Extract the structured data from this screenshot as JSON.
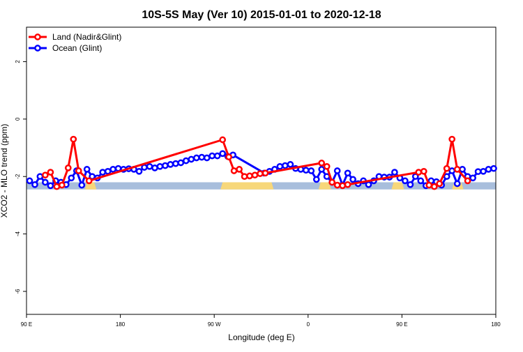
{
  "chart_data": {
    "type": "line",
    "title": "10S-5S May (Ver 10)   2015-01-01 to 2020-12-18",
    "xlabel": "Longitude (deg E)",
    "ylabel": "XCO2 - MLO trend (ppm)",
    "xlim": [
      90,
      540
    ],
    "ylim": [
      -6.8,
      3.2
    ],
    "x_ticks": [
      {
        "value": 90,
        "label": "90 E"
      },
      {
        "value": 180,
        "label": "180"
      },
      {
        "value": 270,
        "label": "90 W"
      },
      {
        "value": 360,
        "label": "0"
      },
      {
        "value": 450,
        "label": "90 E"
      },
      {
        "value": 540,
        "label": "180"
      }
    ],
    "y_ticks": [
      {
        "value": 2,
        "label": "2"
      },
      {
        "value": 0,
        "label": "0"
      },
      {
        "value": -2,
        "label": "-2"
      },
      {
        "value": -4,
        "label": "-4"
      },
      {
        "value": -6,
        "label": "-6"
      }
    ],
    "legend": {
      "position": "top-left"
    },
    "band": {
      "y_top": -2.2,
      "y_bottom": -2.45,
      "ocean_color": "#a8bedc",
      "land_color": "#f7d77a",
      "land_ranges": [
        [
          148,
          155
        ],
        [
          278,
          325
        ],
        [
          372,
          380
        ],
        [
          442,
          450
        ],
        [
          500,
          507
        ]
      ]
    },
    "series": [
      {
        "name": "Land (Nadir&Glint)",
        "color": "#ff0000",
        "points": [
          [
            108,
            -1.95
          ],
          [
            113,
            -1.85
          ],
          [
            119,
            -2.35
          ],
          [
            124,
            -2.3
          ],
          [
            130,
            -1.7
          ],
          [
            135,
            -0.7
          ],
          [
            140,
            -1.8
          ],
          [
            150,
            -2.15
          ],
          [
            278,
            -0.72
          ],
          [
            284,
            -1.32
          ],
          [
            289,
            -1.8
          ],
          [
            294,
            -1.75
          ],
          [
            299,
            -2.0
          ],
          [
            304,
            -1.98
          ],
          [
            309,
            -1.95
          ],
          [
            314,
            -1.9
          ],
          [
            319,
            -1.88
          ],
          [
            373,
            -1.53
          ],
          [
            378,
            -1.65
          ],
          [
            383,
            -2.2
          ],
          [
            388,
            -2.3
          ],
          [
            393,
            -2.32
          ],
          [
            398,
            -2.28
          ],
          [
            466,
            -1.85
          ],
          [
            471,
            -1.82
          ],
          [
            476,
            -2.3
          ],
          [
            481,
            -2.35
          ],
          [
            486,
            -2.25
          ],
          [
            493,
            -1.72
          ],
          [
            498,
            -0.7
          ],
          [
            503,
            -1.75
          ],
          [
            513,
            -2.15
          ]
        ]
      },
      {
        "name": "Ocean (Glint)",
        "color": "#0000ff",
        "points": [
          [
            93,
            -2.15
          ],
          [
            98,
            -2.28
          ],
          [
            103,
            -2.0
          ],
          [
            108,
            -2.2
          ],
          [
            113,
            -2.32
          ],
          [
            118,
            -2.15
          ],
          [
            123,
            -2.2
          ],
          [
            128,
            -2.28
          ],
          [
            133,
            -2.05
          ],
          [
            138,
            -1.8
          ],
          [
            143,
            -2.3
          ],
          [
            148,
            -1.75
          ],
          [
            153,
            -2.0
          ],
          [
            158,
            -2.05
          ],
          [
            163,
            -1.85
          ],
          [
            168,
            -1.82
          ],
          [
            173,
            -1.75
          ],
          [
            178,
            -1.72
          ],
          [
            183,
            -1.75
          ],
          [
            188,
            -1.73
          ],
          [
            193,
            -1.75
          ],
          [
            198,
            -1.82
          ],
          [
            203,
            -1.68
          ],
          [
            208,
            -1.65
          ],
          [
            213,
            -1.7
          ],
          [
            218,
            -1.65
          ],
          [
            223,
            -1.62
          ],
          [
            228,
            -1.58
          ],
          [
            233,
            -1.55
          ],
          [
            238,
            -1.52
          ],
          [
            243,
            -1.45
          ],
          [
            248,
            -1.4
          ],
          [
            253,
            -1.35
          ],
          [
            258,
            -1.33
          ],
          [
            263,
            -1.35
          ],
          [
            268,
            -1.28
          ],
          [
            273,
            -1.28
          ],
          [
            278,
            -1.2
          ],
          [
            283,
            -1.3
          ],
          [
            288,
            -1.25
          ],
          [
            318,
            -1.88
          ],
          [
            323,
            -1.82
          ],
          [
            328,
            -1.75
          ],
          [
            333,
            -1.65
          ],
          [
            338,
            -1.62
          ],
          [
            343,
            -1.58
          ],
          [
            348,
            -1.72
          ],
          [
            353,
            -1.75
          ],
          [
            358,
            -1.78
          ],
          [
            363,
            -1.8
          ],
          [
            368,
            -2.1
          ],
          [
            373,
            -1.75
          ],
          [
            378,
            -2.0
          ],
          [
            383,
            -2.2
          ],
          [
            388,
            -1.8
          ],
          [
            393,
            -2.3
          ],
          [
            398,
            -1.88
          ],
          [
            403,
            -2.1
          ],
          [
            408,
            -2.25
          ],
          [
            413,
            -2.15
          ],
          [
            418,
            -2.28
          ],
          [
            423,
            -2.15
          ],
          [
            428,
            -2.0
          ],
          [
            433,
            -2.02
          ],
          [
            438,
            -2.02
          ],
          [
            443,
            -1.85
          ],
          [
            448,
            -2.05
          ],
          [
            453,
            -2.15
          ],
          [
            458,
            -2.28
          ],
          [
            463,
            -2.0
          ],
          [
            468,
            -2.15
          ],
          [
            473,
            -2.32
          ],
          [
            478,
            -2.15
          ],
          [
            483,
            -2.18
          ],
          [
            488,
            -2.3
          ],
          [
            493,
            -2.0
          ],
          [
            498,
            -1.8
          ],
          [
            503,
            -2.25
          ],
          [
            508,
            -1.75
          ],
          [
            513,
            -2.0
          ],
          [
            518,
            -2.05
          ],
          [
            523,
            -1.83
          ],
          [
            528,
            -1.82
          ],
          [
            533,
            -1.75
          ],
          [
            538,
            -1.72
          ]
        ]
      }
    ]
  }
}
